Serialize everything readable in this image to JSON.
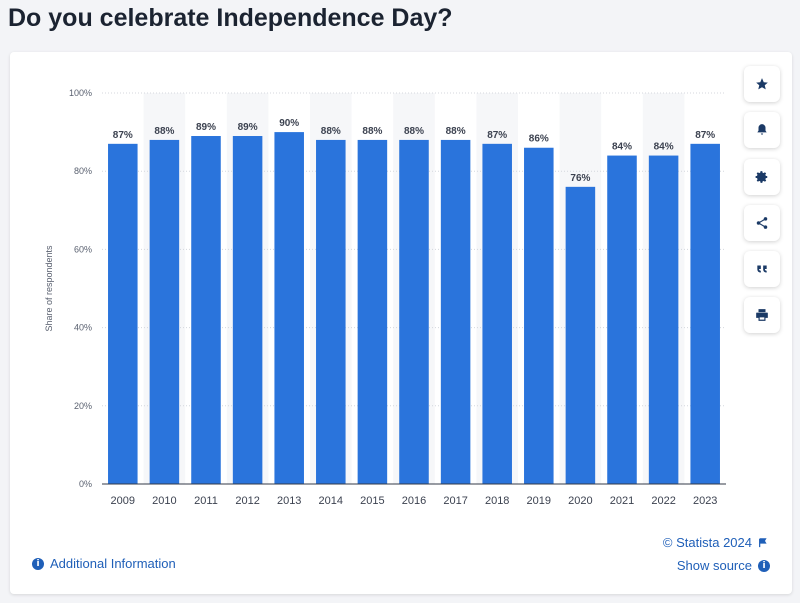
{
  "page": {
    "title": "Do you celebrate Independence Day?"
  },
  "chart_data": {
    "type": "bar",
    "categories": [
      "2009",
      "2010",
      "2011",
      "2012",
      "2013",
      "2014",
      "2015",
      "2016",
      "2017",
      "2018",
      "2019",
      "2020",
      "2021",
      "2022",
      "2023"
    ],
    "values": [
      87,
      88,
      89,
      89,
      90,
      88,
      88,
      88,
      88,
      87,
      86,
      76,
      84,
      84,
      87
    ],
    "value_labels": [
      "87%",
      "88%",
      "89%",
      "89%",
      "90%",
      "88%",
      "88%",
      "88%",
      "88%",
      "87%",
      "86%",
      "76%",
      "84%",
      "84%",
      "87%"
    ],
    "ylabel": "Share of respondents",
    "ylim": [
      0,
      100
    ],
    "yticks": [
      0,
      20,
      40,
      60,
      80,
      100
    ],
    "ytick_labels": [
      "0%",
      "20%",
      "40%",
      "60%",
      "80%",
      "100%"
    ],
    "bar_color": "#2a74dc",
    "band_color": "#f6f7f9",
    "grid": true
  },
  "toolbar": {
    "items": [
      {
        "name": "star-icon",
        "label": "favorite"
      },
      {
        "name": "bell-icon",
        "label": "alert"
      },
      {
        "name": "gear-icon",
        "label": "settings"
      },
      {
        "name": "share-icon",
        "label": "share"
      },
      {
        "name": "quote-icon",
        "label": "cite"
      },
      {
        "name": "print-icon",
        "label": "print"
      }
    ]
  },
  "footer": {
    "additional_info": "Additional Information",
    "copyright": "© Statista 2024",
    "show_source": "Show source"
  },
  "colors": {
    "accent": "#1f5fb8",
    "title": "#1b2331"
  }
}
